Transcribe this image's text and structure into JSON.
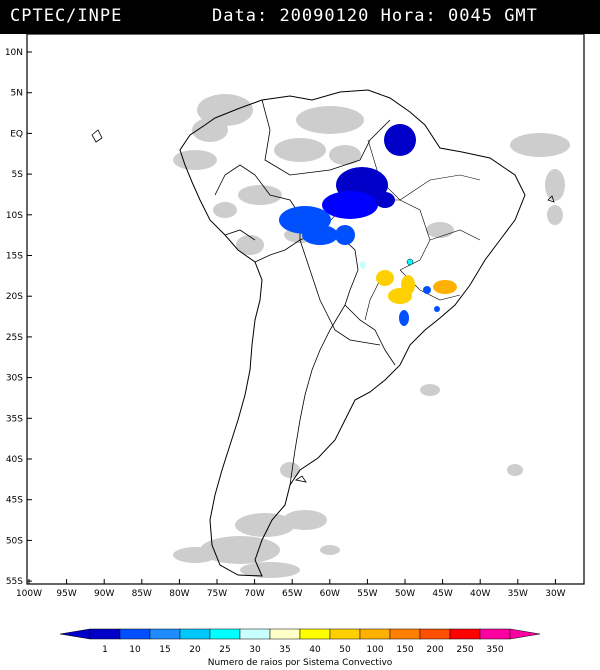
{
  "header": {
    "organization": "CPTEC/INPE",
    "data_label": "Data:",
    "date": "20090120",
    "hora_label": "Hora:",
    "time": "0045 GMT"
  },
  "map": {
    "lat_labels": [
      "10N",
      "5N",
      "EQ",
      "5S",
      "10S",
      "15S",
      "20S",
      "25S",
      "30S",
      "35S",
      "40S",
      "45S",
      "50S",
      "55S"
    ],
    "lon_labels": [
      "100W",
      "95W",
      "90W",
      "85W",
      "80W",
      "75W",
      "70W",
      "65W",
      "60W",
      "55W",
      "50W",
      "45W",
      "40W",
      "35W",
      "30W"
    ]
  },
  "legend": {
    "values": [
      "1",
      "10",
      "15",
      "20",
      "25",
      "30",
      "35",
      "40",
      "50",
      "100",
      "150",
      "200",
      "250",
      "350"
    ],
    "colors": [
      "#0000c8",
      "#0050ff",
      "#1e8cff",
      "#00c8ff",
      "#00ffff",
      "#c8ffff",
      "#ffffc8",
      "#ffff00",
      "#ffd000",
      "#ffb000",
      "#ff8000",
      "#ff5000",
      "#ff0000",
      "#ff00a0"
    ],
    "title": "Numero de raios por Sistema Convectivo"
  }
}
